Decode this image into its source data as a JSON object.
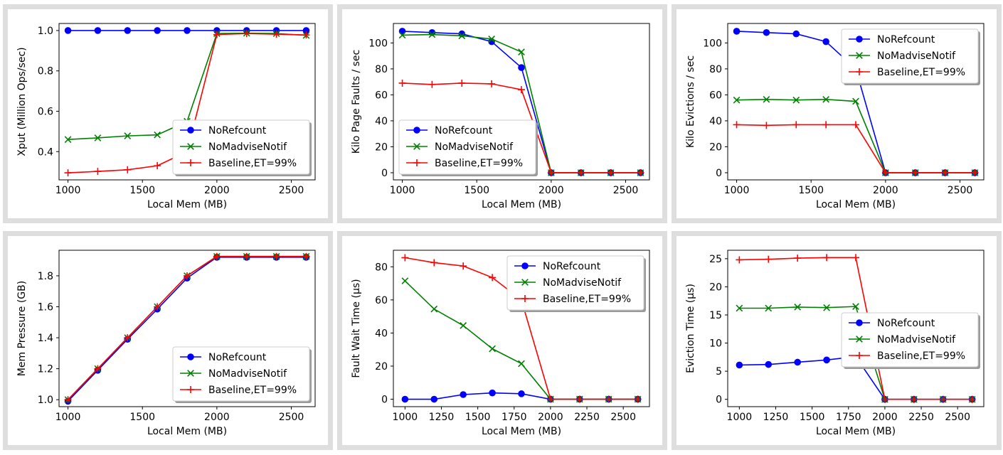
{
  "colors": {
    "NoRefcount": "#0000ff",
    "NoMadviseNotif": "#008000",
    "Baseline,ET=99%": "#ff0000"
  },
  "chart_data": [
    {
      "type": "line",
      "ylabel": "Xput (Million Ops/sec)",
      "xlabel": "Local Mem (MB)",
      "x": [
        1000,
        1200,
        1400,
        1600,
        1800,
        2000,
        2200,
        2400,
        2600
      ],
      "xlim": [
        940,
        2660
      ],
      "ylim": [
        0.26,
        1.035
      ],
      "xticks": [
        1000,
        1500,
        2000,
        2500
      ],
      "xtick_labels": [
        "1000",
        "1500",
        "2000",
        "2500"
      ],
      "yticks": [
        0.4,
        0.6,
        0.8,
        1.0
      ],
      "ytick_labels": [
        "0.4",
        "0.6",
        "0.8",
        "1.0"
      ],
      "legend": "lower-right",
      "series": [
        {
          "name": "NoRefcount",
          "marker": "circle",
          "values": [
            1.0,
            1.0,
            1.0,
            1.0,
            1.0,
            1.0,
            1.0,
            1.0,
            1.0
          ]
        },
        {
          "name": "NoMadviseNotif",
          "marker": "x",
          "values": [
            0.46,
            0.468,
            0.478,
            0.483,
            0.55,
            0.985,
            0.987,
            0.985,
            0.976
          ]
        },
        {
          "name": "Baseline,ET=99%",
          "marker": "plus",
          "values": [
            0.295,
            0.302,
            0.31,
            0.33,
            0.4,
            0.98,
            0.985,
            0.982,
            0.978
          ]
        }
      ]
    },
    {
      "type": "line",
      "ylabel": "Kilo Page Faults / sec",
      "xlabel": "Local Mem (MB)",
      "x": [
        1000,
        1200,
        1400,
        1600,
        1800,
        2000,
        2200,
        2400,
        2600
      ],
      "xlim": [
        940,
        2660
      ],
      "ylim": [
        -5.5,
        115
      ],
      "xticks": [
        1000,
        1500,
        2000,
        2500
      ],
      "xtick_labels": [
        "1000",
        "1500",
        "2000",
        "2500"
      ],
      "yticks": [
        0,
        20,
        40,
        60,
        80,
        100
      ],
      "ytick_labels": [
        "0",
        "20",
        "40",
        "60",
        "80",
        "100"
      ],
      "legend": "lower-left",
      "series": [
        {
          "name": "NoRefcount",
          "marker": "circle",
          "values": [
            109,
            108,
            107,
            101,
            81,
            0,
            0,
            0,
            0
          ]
        },
        {
          "name": "NoMadviseNotif",
          "marker": "x",
          "values": [
            106,
            106.5,
            105.5,
            103,
            93,
            0,
            0,
            0,
            0
          ]
        },
        {
          "name": "Baseline,ET=99%",
          "marker": "plus",
          "values": [
            69,
            68,
            69,
            68.5,
            64,
            0,
            0,
            0,
            0
          ]
        }
      ]
    },
    {
      "type": "line",
      "ylabel": "Kilo Evictions / sec",
      "xlabel": "Local Mem (MB)",
      "x": [
        1000,
        1200,
        1400,
        1600,
        1800,
        2000,
        2200,
        2400,
        2600
      ],
      "xlim": [
        940,
        2660
      ],
      "ylim": [
        -5.5,
        115
      ],
      "xticks": [
        1000,
        1500,
        2000,
        2500
      ],
      "xtick_labels": [
        "1000",
        "1500",
        "2000",
        "2500"
      ],
      "yticks": [
        0,
        20,
        40,
        60,
        80,
        100
      ],
      "ytick_labels": [
        "0",
        "20",
        "40",
        "60",
        "80",
        "100"
      ],
      "legend": "upper-right",
      "series": [
        {
          "name": "NoRefcount",
          "marker": "circle",
          "values": [
            109,
            108,
            107,
            101,
            80,
            0,
            0,
            0,
            0
          ]
        },
        {
          "name": "NoMadviseNotif",
          "marker": "x",
          "values": [
            56,
            56.5,
            56,
            56.5,
            55,
            0,
            0,
            0,
            0
          ]
        },
        {
          "name": "Baseline,ET=99%",
          "marker": "plus",
          "values": [
            37,
            36.5,
            37,
            37,
            37,
            0,
            0,
            0,
            0
          ]
        }
      ]
    },
    {
      "type": "line",
      "ylabel": "Mem Pressure (GB)",
      "xlabel": "Local Mem (MB)",
      "x": [
        1000,
        1200,
        1400,
        1600,
        1800,
        2000,
        2200,
        2400,
        2600
      ],
      "xlim": [
        940,
        2660
      ],
      "ylim": [
        0.955,
        1.965
      ],
      "xticks": [
        1000,
        1500,
        2000,
        2500
      ],
      "xtick_labels": [
        "1000",
        "1500",
        "2000",
        "2500"
      ],
      "yticks": [
        1.0,
        1.2,
        1.4,
        1.6,
        1.8
      ],
      "ytick_labels": [
        "1.0",
        "1.2",
        "1.4",
        "1.6",
        "1.8"
      ],
      "legend": "lower-right",
      "series": [
        {
          "name": "NoRefcount",
          "marker": "circle",
          "values": [
            0.99,
            1.19,
            1.39,
            1.585,
            1.785,
            1.92,
            1.92,
            1.92,
            1.92
          ]
        },
        {
          "name": "NoMadviseNotif",
          "marker": "x",
          "values": [
            1.0,
            1.2,
            1.4,
            1.6,
            1.8,
            1.925,
            1.925,
            1.925,
            1.925
          ]
        },
        {
          "name": "Baseline,ET=99%",
          "marker": "plus",
          "values": [
            1.0,
            1.2,
            1.4,
            1.6,
            1.8,
            1.925,
            1.925,
            1.925,
            1.925
          ]
        }
      ]
    },
    {
      "type": "line",
      "ylabel": "Fault Wait Time (µs)",
      "xlabel": "Local Mem (MB)",
      "x": [
        1000,
        1200,
        1400,
        1600,
        1800,
        2000,
        2200,
        2400,
        2600
      ],
      "xlim": [
        920,
        2680
      ],
      "ylim": [
        -4.5,
        90
      ],
      "xticks": [
        1000,
        1250,
        1500,
        1750,
        2000,
        2250,
        2500
      ],
      "xtick_labels": [
        "1000",
        "1250",
        "1500",
        "1750",
        "2000",
        "2250",
        "2500"
      ],
      "yticks": [
        0,
        20,
        40,
        60,
        80
      ],
      "ytick_labels": [
        "0",
        "20",
        "40",
        "60",
        "80"
      ],
      "legend": "upper-right",
      "series": [
        {
          "name": "NoRefcount",
          "marker": "circle",
          "values": [
            0,
            0,
            2.8,
            3.8,
            3.3,
            0,
            0,
            0,
            0
          ]
        },
        {
          "name": "NoMadviseNotif",
          "marker": "x",
          "values": [
            71.5,
            54.5,
            44.5,
            30.5,
            21.5,
            0,
            0,
            0,
            0
          ]
        },
        {
          "name": "Baseline,ET=99%",
          "marker": "plus",
          "values": [
            85.5,
            82.5,
            80.5,
            73.5,
            60,
            0,
            0,
            0,
            0
          ]
        }
      ]
    },
    {
      "type": "line",
      "ylabel": "Eviction Time (µs)",
      "xlabel": "Local Mem (MB)",
      "x": [
        1000,
        1200,
        1400,
        1600,
        1800,
        2000,
        2200,
        2400,
        2600
      ],
      "xlim": [
        920,
        2680
      ],
      "ylim": [
        -1.3,
        26.5
      ],
      "xticks": [
        1000,
        1250,
        1500,
        1750,
        2000,
        2250,
        2500
      ],
      "xtick_labels": [
        "1000",
        "1250",
        "1500",
        "1750",
        "2000",
        "2250",
        "2500"
      ],
      "yticks": [
        0,
        5,
        10,
        15,
        20,
        25
      ],
      "ytick_labels": [
        "0",
        "5",
        "10",
        "15",
        "20",
        "25"
      ],
      "legend": "center-right",
      "series": [
        {
          "name": "NoRefcount",
          "marker": "circle",
          "values": [
            6.1,
            6.2,
            6.6,
            7.0,
            7.6,
            0,
            0,
            0,
            0
          ]
        },
        {
          "name": "NoMadviseNotif",
          "marker": "x",
          "values": [
            16.2,
            16.2,
            16.4,
            16.3,
            16.5,
            0,
            0,
            0,
            0
          ]
        },
        {
          "name": "Baseline,ET=99%",
          "marker": "plus",
          "values": [
            24.8,
            24.9,
            25.1,
            25.2,
            25.2,
            0,
            0,
            0,
            0
          ]
        }
      ]
    }
  ]
}
